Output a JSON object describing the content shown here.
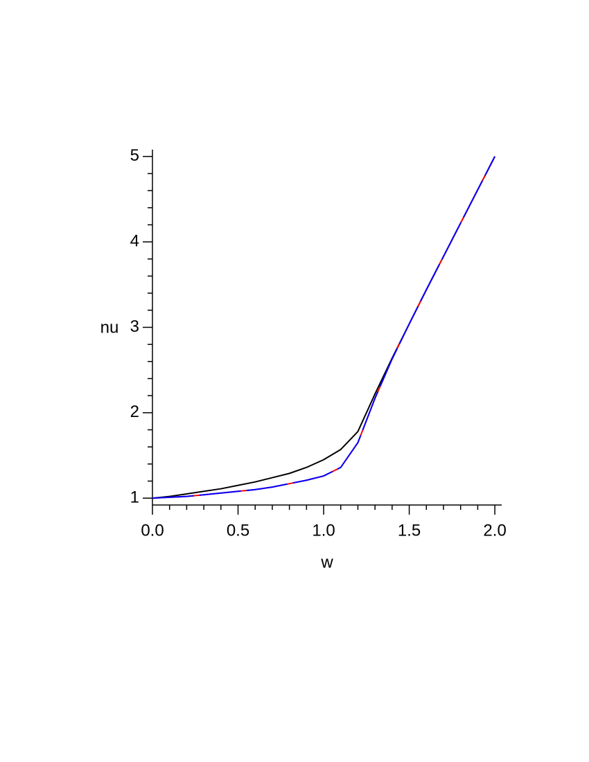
{
  "chart_data": {
    "type": "line",
    "x_label": "w",
    "y_label": "nu",
    "x": [
      0,
      0.1,
      0.2,
      0.3,
      0.4,
      0.5,
      0.6,
      0.7,
      0.8,
      0.9,
      1.0,
      1.1,
      1.2,
      1.3,
      1.4,
      1.5,
      1.6,
      1.7,
      1.8,
      1.9,
      2.0
    ],
    "series": [
      {
        "color": "#000000",
        "values": [
          1,
          1.02,
          1.05,
          1.08,
          1.11,
          1.15,
          1.19,
          1.24,
          1.29,
          1.36,
          1.45,
          1.57,
          1.78,
          2.22,
          2.64,
          3.04,
          3.44,
          3.83,
          4.22,
          4.61,
          5
        ]
      },
      {
        "color": "#ff0000",
        "values": [
          1,
          1.01,
          1.02,
          1.04,
          1.06,
          1.08,
          1.1,
          1.13,
          1.17,
          1.21,
          1.26,
          1.36,
          1.65,
          2.17,
          2.63,
          3.04,
          3.44,
          3.83,
          4.22,
          4.61,
          5
        ]
      },
      {
        "color": "#0000ff",
        "values": [
          1,
          1.01,
          1.02,
          1.04,
          1.06,
          1.08,
          1.1,
          1.13,
          1.17,
          1.21,
          1.26,
          1.36,
          1.65,
          2.17,
          2.63,
          3.04,
          3.44,
          3.83,
          4.22,
          4.61,
          5
        ]
      }
    ],
    "xlim": [
      0,
      2.04
    ],
    "ylim": [
      0.92,
      5.08
    ],
    "xticks": [
      {
        "value": 0,
        "label": "0.0"
      },
      0.5,
      {
        "value": 1,
        "label": "1.0"
      },
      1.5,
      {
        "value": 2,
        "label": "2.0"
      }
    ],
    "yticks": [
      1,
      2,
      3,
      4,
      5
    ],
    "xticks_minor": [
      0.1,
      0.2,
      0.3,
      0.4,
      0.6,
      0.7,
      0.8,
      0.9,
      1.1,
      1.2,
      1.3,
      1.4,
      1.6,
      1.7,
      1.8,
      1.9
    ],
    "yticks_minor": [
      1.2,
      1.4,
      1.6,
      1.8,
      2.2,
      2.4,
      2.6,
      2.8,
      3.2,
      3.4,
      3.6,
      3.8,
      4.2,
      4.4,
      4.6,
      4.8
    ]
  }
}
